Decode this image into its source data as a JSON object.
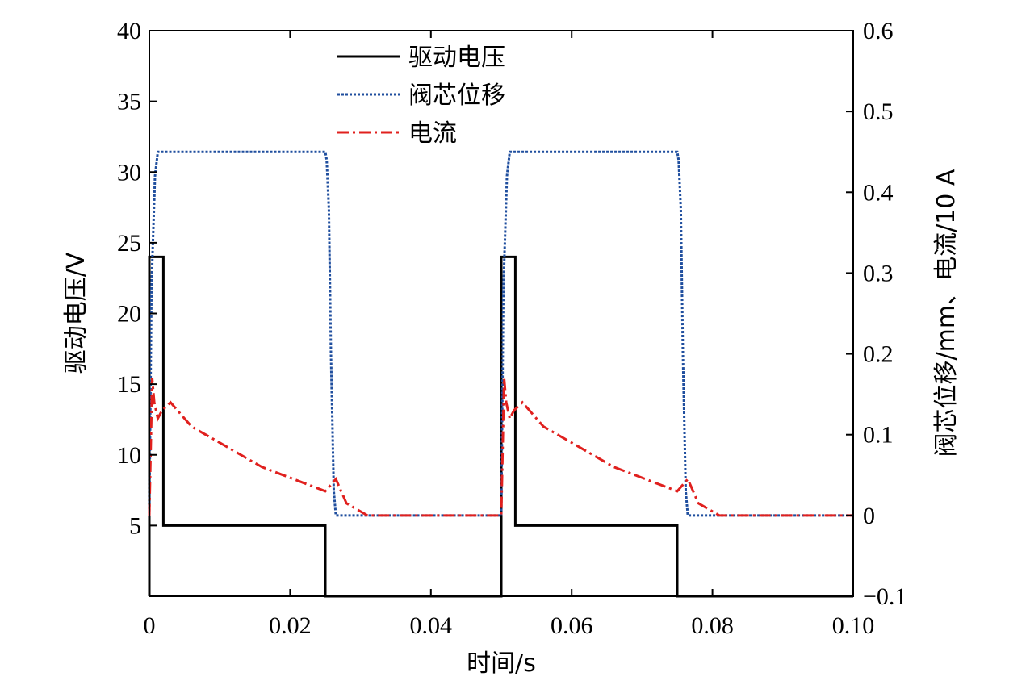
{
  "chart_data": {
    "type": "line",
    "xlabel": "时间/s",
    "ylabel_left": "驱动电压/V",
    "ylabel_right": "阀芯位移/mm、电流/10 A",
    "xlim": [
      0,
      0.1
    ],
    "ylim_left": [
      0,
      40
    ],
    "ylim_right": [
      -0.1,
      0.6
    ],
    "x_ticks": [
      "0",
      "0.02",
      "0.04",
      "0.06",
      "0.08",
      "0.10"
    ],
    "y_left_ticks": [
      "5",
      "10",
      "15",
      "20",
      "25",
      "30",
      "35",
      "40"
    ],
    "y_right_ticks": [
      "−0.1",
      "0",
      "0.1",
      "0.2",
      "0.3",
      "0.4",
      "0.5",
      "0.6"
    ],
    "grid": false,
    "legend_position": "top-center",
    "series": [
      {
        "name": "驱动电压",
        "axis": "left",
        "color": "#000000",
        "style": "solid",
        "x": [
          0,
          0,
          0.002,
          0.002,
          0.025,
          0.025,
          0.05,
          0.05,
          0.052,
          0.052,
          0.075,
          0.075,
          0.1
        ],
        "y": [
          0,
          24,
          24,
          5,
          5,
          0,
          0,
          24,
          24,
          5,
          5,
          0,
          0
        ]
      },
      {
        "name": "阀芯位移",
        "axis": "right",
        "color": "#1f4e9e",
        "style": "dotted",
        "x": [
          0,
          0.0003,
          0.0008,
          0.0012,
          0.025,
          0.0252,
          0.0255,
          0.0258,
          0.0262,
          0.0265,
          0.05,
          0.0503,
          0.0508,
          0.0512,
          0.075,
          0.0752,
          0.0755,
          0.0758,
          0.0762,
          0.0765,
          0.1
        ],
        "y": [
          0,
          0.28,
          0.42,
          0.45,
          0.45,
          0.44,
          0.38,
          0.2,
          0.03,
          0,
          0,
          0.28,
          0.42,
          0.45,
          0.45,
          0.44,
          0.38,
          0.2,
          0.03,
          0,
          0
        ]
      },
      {
        "name": "电流",
        "axis": "right",
        "color": "#e0201e",
        "style": "dashdot",
        "x": [
          0,
          0.0004,
          0.0007,
          0.0012,
          0.0018,
          0.003,
          0.006,
          0.01,
          0.016,
          0.022,
          0.025,
          0.0265,
          0.028,
          0.031,
          0.05,
          0.0504,
          0.0507,
          0.0512,
          0.0518,
          0.053,
          0.056,
          0.06,
          0.066,
          0.072,
          0.075,
          0.0765,
          0.078,
          0.081,
          0.1
        ],
        "y": [
          0,
          0.17,
          0.14,
          0.12,
          0.13,
          0.14,
          0.11,
          0.09,
          0.06,
          0.04,
          0.03,
          0.045,
          0.015,
          0,
          0,
          0.17,
          0.14,
          0.12,
          0.13,
          0.14,
          0.11,
          0.09,
          0.06,
          0.04,
          0.03,
          0.045,
          0.015,
          0,
          0
        ]
      }
    ]
  }
}
